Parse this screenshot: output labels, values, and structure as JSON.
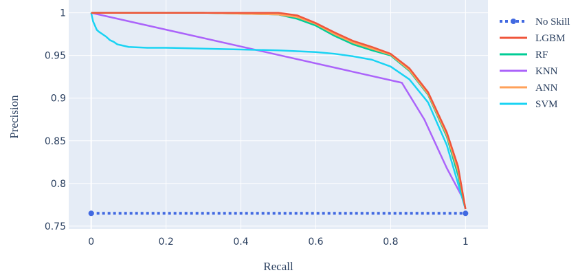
{
  "chart_data": {
    "type": "line",
    "xlabel": "Recall",
    "ylabel": "Precision",
    "xlim": [
      -0.06,
      1.06
    ],
    "ylim": [
      0.7467,
      1.015
    ],
    "x_ticks": [
      0,
      0.2,
      0.4,
      0.6,
      0.8,
      1
    ],
    "x_tick_labels": [
      "0",
      "0.2",
      "0.4",
      "0.6",
      "0.8",
      "1"
    ],
    "y_ticks": [
      0.75,
      0.8,
      0.85,
      0.9,
      0.95,
      1
    ],
    "y_tick_labels": [
      "0.75",
      "0.8",
      "0.85",
      "0.9",
      "0.95",
      "1"
    ],
    "grid": true,
    "legend_position": "right",
    "series": [
      {
        "name": "No Skill",
        "color": "#4169e1",
        "dash": "dot",
        "markers": true,
        "x": [
          0,
          1
        ],
        "y": [
          0.765,
          0.765
        ]
      },
      {
        "name": "LGBM",
        "color": "#ef553b",
        "x": [
          0,
          0.1,
          0.2,
          0.3,
          0.4,
          0.5,
          0.55,
          0.6,
          0.65,
          0.7,
          0.75,
          0.8,
          0.85,
          0.9,
          0.95,
          0.98,
          1
        ],
        "y": [
          1,
          1,
          1,
          1,
          1,
          1,
          0.997,
          0.988,
          0.977,
          0.967,
          0.96,
          0.952,
          0.935,
          0.907,
          0.86,
          0.82,
          0.77
        ]
      },
      {
        "name": "RF",
        "color": "#00cc96",
        "x": [
          0,
          0.1,
          0.2,
          0.3,
          0.4,
          0.5,
          0.55,
          0.6,
          0.65,
          0.7,
          0.75,
          0.8,
          0.85,
          0.9,
          0.95,
          0.98,
          1
        ],
        "y": [
          1,
          1,
          1,
          1,
          0.999,
          0.998,
          0.993,
          0.985,
          0.973,
          0.963,
          0.956,
          0.95,
          0.932,
          0.904,
          0.855,
          0.81,
          0.77
        ]
      },
      {
        "name": "KNN",
        "color": "#ab63fa",
        "x": [
          0,
          0.83,
          0.89,
          0.95,
          0.99,
          1
        ],
        "y": [
          1,
          0.918,
          0.875,
          0.818,
          0.785,
          0.77
        ]
      },
      {
        "name": "ANN",
        "color": "#ffa15a",
        "x": [
          0,
          0.1,
          0.2,
          0.3,
          0.4,
          0.5,
          0.55,
          0.6,
          0.65,
          0.7,
          0.75,
          0.8,
          0.85,
          0.9,
          0.95,
          0.98,
          1
        ],
        "y": [
          1,
          1,
          1,
          1,
          0.999,
          0.998,
          0.995,
          0.987,
          0.975,
          0.965,
          0.958,
          0.951,
          0.933,
          0.905,
          0.857,
          0.815,
          0.77
        ]
      },
      {
        "name": "SVM",
        "color": "#19d3f3",
        "x": [
          0,
          0.005,
          0.01,
          0.015,
          0.02,
          0.03,
          0.04,
          0.05,
          0.06,
          0.07,
          0.08,
          0.1,
          0.15,
          0.2,
          0.3,
          0.4,
          0.5,
          0.6,
          0.65,
          0.7,
          0.75,
          0.8,
          0.85,
          0.9,
          0.95,
          1
        ],
        "y": [
          1,
          0.99,
          0.985,
          0.98,
          0.978,
          0.975,
          0.972,
          0.968,
          0.966,
          0.963,
          0.962,
          0.96,
          0.959,
          0.959,
          0.958,
          0.957,
          0.956,
          0.954,
          0.952,
          0.949,
          0.945,
          0.937,
          0.922,
          0.895,
          0.845,
          0.77
        ]
      }
    ]
  }
}
